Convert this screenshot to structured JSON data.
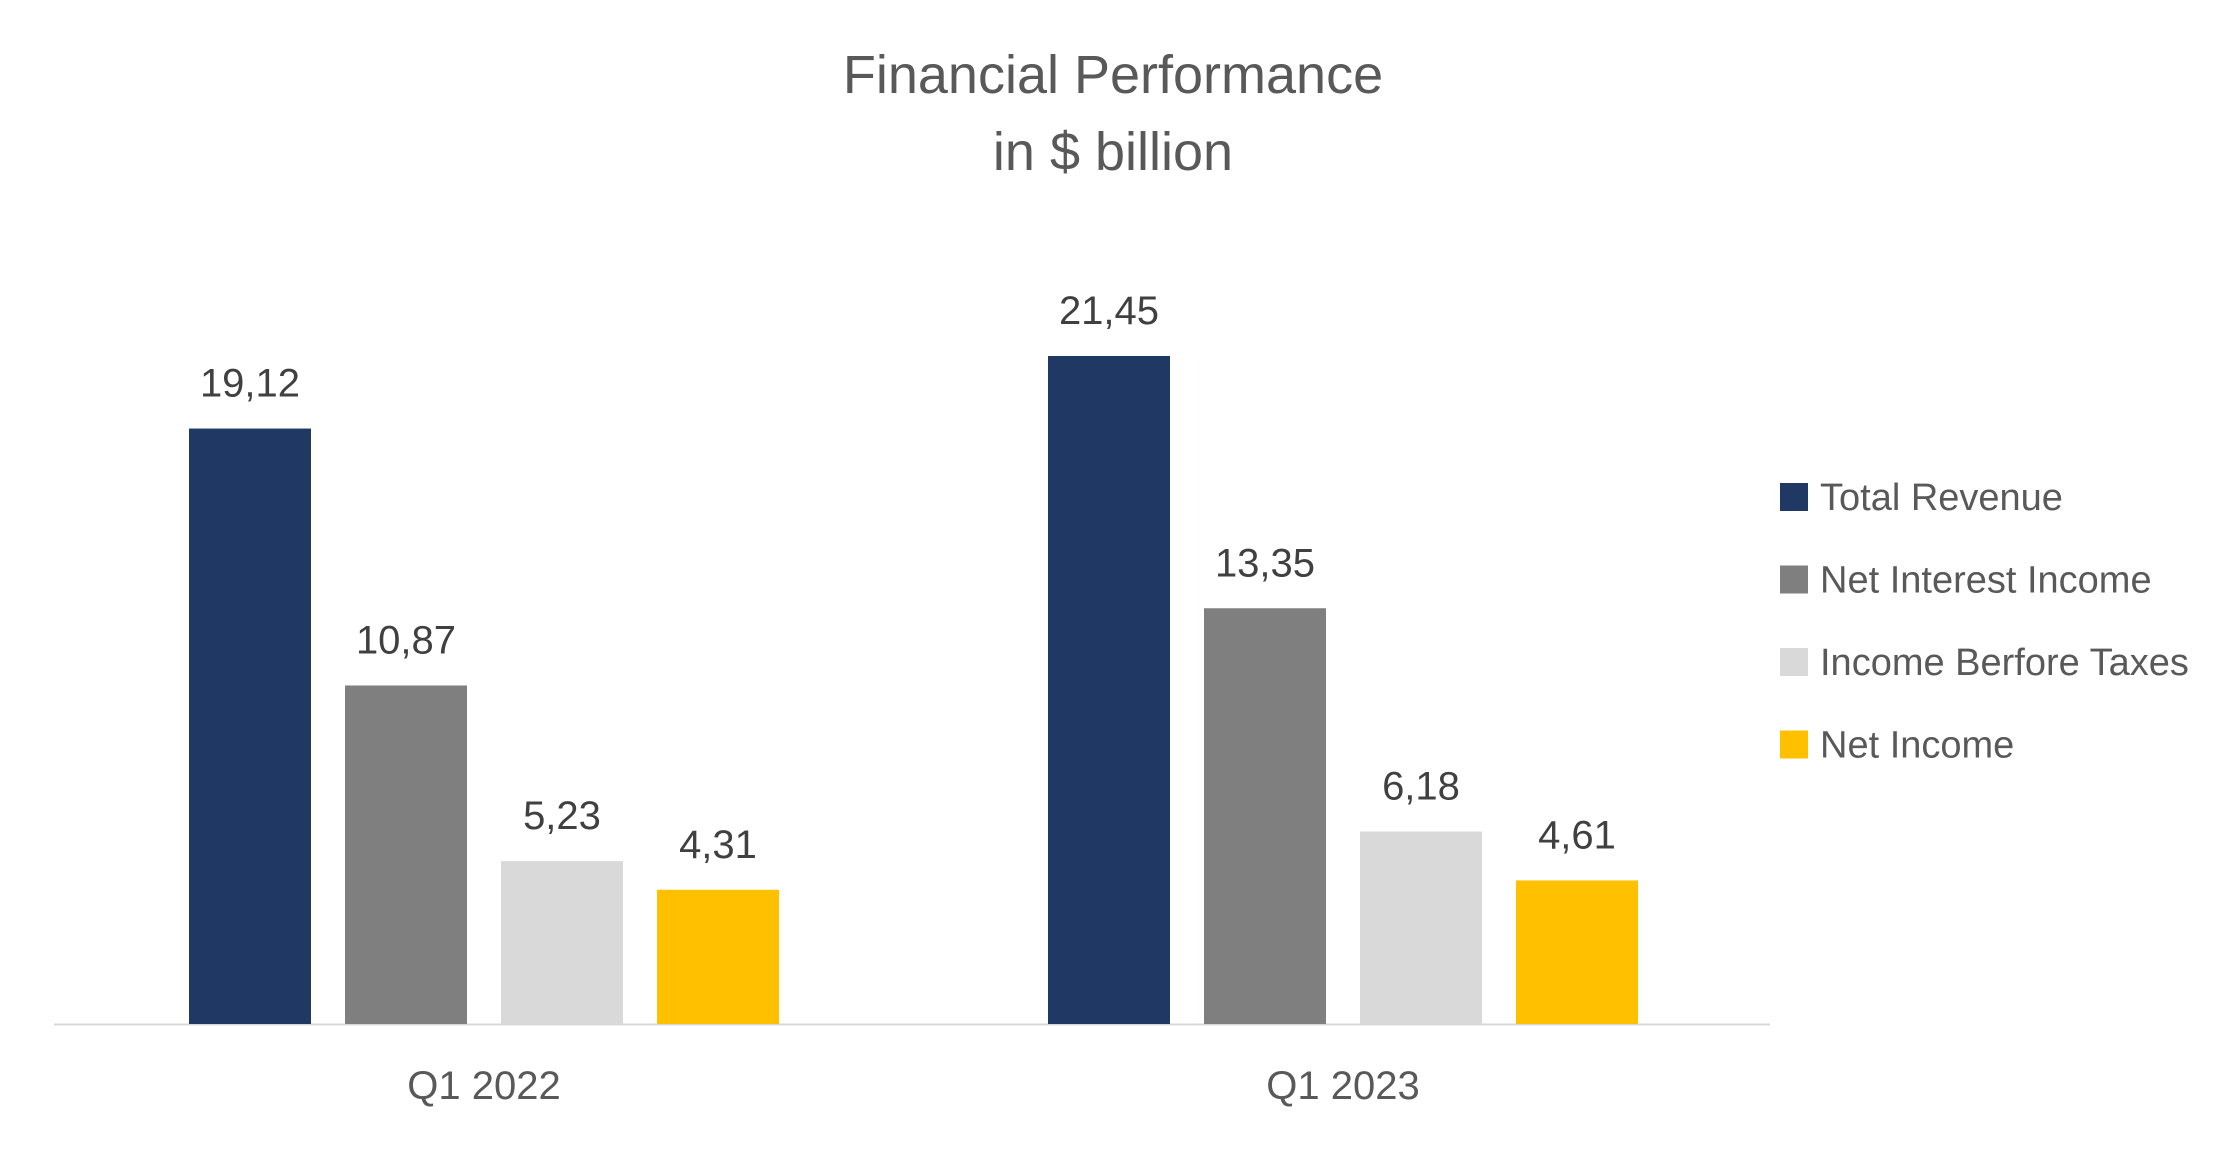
{
  "chart_data": {
    "type": "bar",
    "title": "Financial Performance",
    "subtitle": "in $ billion",
    "xlabel": "",
    "ylabel": "",
    "categories": [
      "Q1 2022",
      "Q1 2023"
    ],
    "series": [
      {
        "name": "Total Revenue",
        "values": [
          19.12,
          21.45
        ],
        "labels": [
          "19,12",
          "21,45"
        ],
        "color": "#203864"
      },
      {
        "name": "Net Interest Income",
        "values": [
          10.87,
          13.35
        ],
        "labels": [
          "10,87",
          "13,35"
        ],
        "color": "#7f7f7f"
      },
      {
        "name": "Income Berfore Taxes",
        "values": [
          5.23,
          6.18
        ],
        "labels": [
          "5,23",
          "6,18"
        ],
        "color": "#d9d9d9"
      },
      {
        "name": "Net Income",
        "values": [
          4.31,
          4.61
        ],
        "labels": [
          "4,31",
          "4,61"
        ],
        "color": "#ffc000"
      }
    ],
    "ylim": [
      0,
      21.45
    ],
    "grid": false,
    "legend": "right",
    "axis_color": "#d9d9d9"
  }
}
